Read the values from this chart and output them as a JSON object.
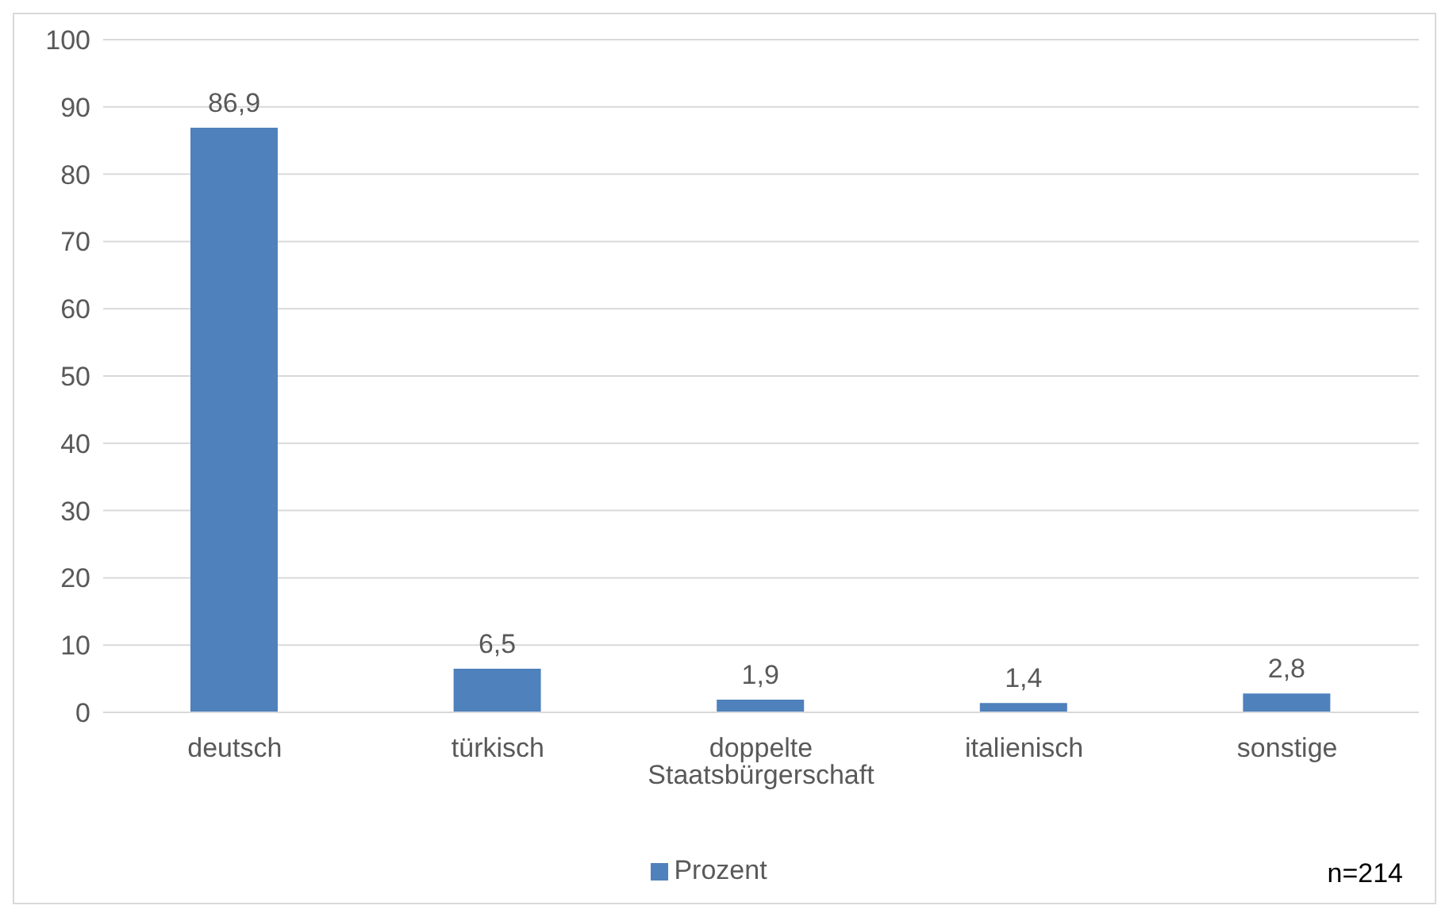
{
  "chart_data": {
    "type": "bar",
    "categories": [
      "deutsch",
      "türkisch",
      "doppelte Staatsbürgerschaft",
      "italienisch",
      "sonstige"
    ],
    "series": [
      {
        "name": "Prozent",
        "color": "#4f81bd",
        "values": [
          86.9,
          6.5,
          1.9,
          1.4,
          2.8
        ],
        "value_labels": [
          "86,9",
          "6,5",
          "1,9",
          "1,4",
          "2,8"
        ]
      }
    ],
    "ylim": [
      0,
      100
    ],
    "yticks": [
      0,
      10,
      20,
      30,
      40,
      50,
      60,
      70,
      80,
      90,
      100
    ],
    "grid": "y",
    "legend": "bottom",
    "annotations": [
      "n=214"
    ]
  }
}
